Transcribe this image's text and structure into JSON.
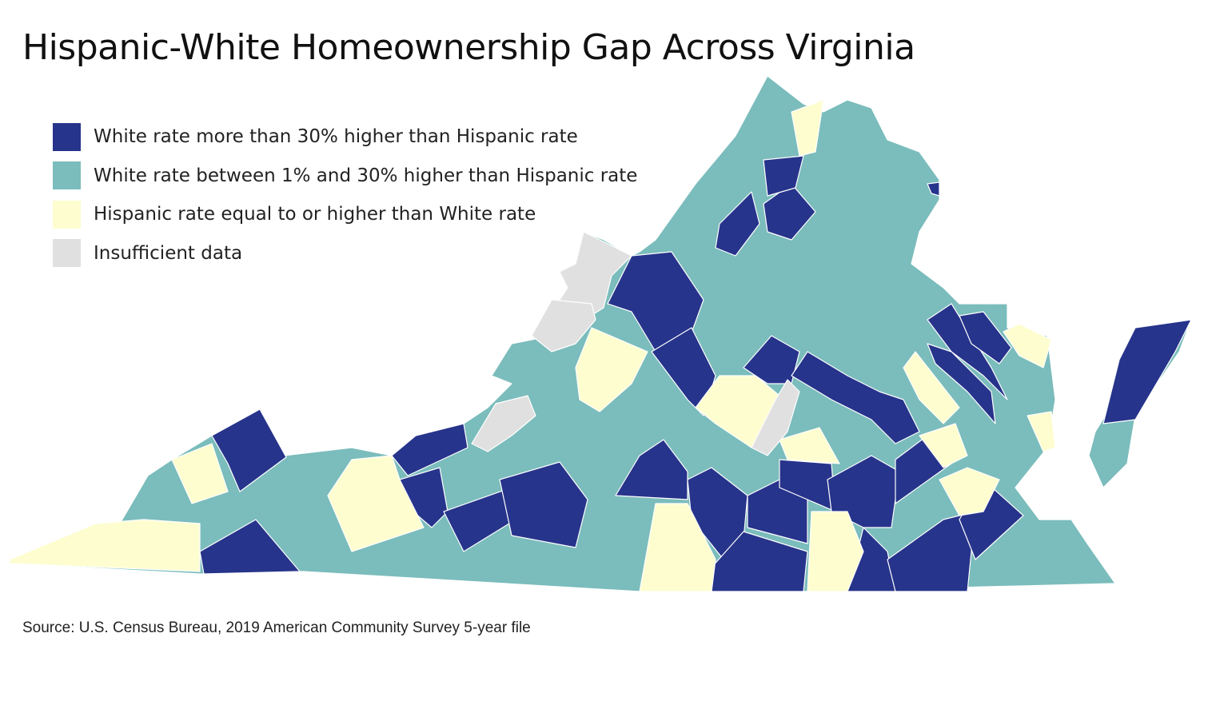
{
  "title": "Hispanic-White Homeownership Gap Across Virginia",
  "legend": [
    {
      "label": "White rate more than 30% higher than Hispanic rate",
      "color": "#27348b"
    },
    {
      "label": "White rate between 1% and 30% higher than Hispanic rate",
      "color": "#7bbcbc"
    },
    {
      "label": "Hispanic rate equal to or higher than White rate",
      "color": "#fdfdd0"
    },
    {
      "label": "Insufficient data",
      "color": "#e0e0e0"
    }
  ],
  "source": "Source: U.S. Census Bureau, 2019 American Community Survey 5-year file"
}
